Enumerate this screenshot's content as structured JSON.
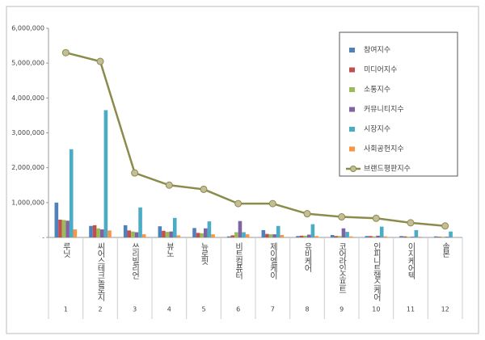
{
  "chart_data": {
    "type": "bar",
    "categories": [
      "루닛",
      "씨어스테크놀로지",
      "쓰리빌리언",
      "뷰노",
      "뉴로핏",
      "비트컴퓨터",
      "제이엘케이",
      "유비케어",
      "코어라인소프트",
      "인피니트헬스케어",
      "이지케어텍",
      "솔본"
    ],
    "ranks": [
      1,
      2,
      3,
      4,
      5,
      6,
      7,
      8,
      9,
      10,
      11,
      12
    ],
    "series": [
      {
        "name": "참여지수",
        "color": "#4f81bd",
        "values": [
          1000000,
          330000,
          350000,
          320000,
          270000,
          30000,
          210000,
          40000,
          70000,
          40000,
          40000,
          30000
        ]
      },
      {
        "name": "미디어지수",
        "color": "#c0504d",
        "values": [
          510000,
          350000,
          200000,
          190000,
          130000,
          60000,
          100000,
          50000,
          40000,
          40000,
          30000,
          20000
        ]
      },
      {
        "name": "소통지수",
        "color": "#9bbb59",
        "values": [
          500000,
          260000,
          170000,
          160000,
          120000,
          150000,
          90000,
          50000,
          40000,
          30000,
          20000,
          20000
        ]
      },
      {
        "name": "커뮤니티지수",
        "color": "#8064a2",
        "values": [
          480000,
          230000,
          150000,
          170000,
          260000,
          470000,
          90000,
          80000,
          260000,
          50000,
          20000,
          20000
        ]
      },
      {
        "name": "시장지수",
        "color": "#4bacc6",
        "values": [
          2530000,
          3650000,
          860000,
          560000,
          460000,
          150000,
          330000,
          380000,
          160000,
          310000,
          210000,
          170000
        ]
      },
      {
        "name": "사회공헌지수",
        "color": "#f79646",
        "values": [
          230000,
          200000,
          90000,
          60000,
          90000,
          90000,
          70000,
          40000,
          30000,
          30000,
          20000,
          10000
        ]
      },
      {
        "name": "브랜드평판지수",
        "color": "#8b8b4b",
        "type": "line",
        "values": [
          5300000,
          5050000,
          1850000,
          1500000,
          1380000,
          970000,
          970000,
          680000,
          590000,
          550000,
          420000,
          330000
        ]
      }
    ],
    "ylim": [
      0,
      6000000
    ],
    "yticks": [
      {
        "value": 0,
        "label": "-"
      },
      {
        "value": 1000000,
        "label": "1,000,000"
      },
      {
        "value": 2000000,
        "label": "2,000,000"
      },
      {
        "value": 3000000,
        "label": "3,000,000"
      },
      {
        "value": 4000000,
        "label": "4,000,000"
      },
      {
        "value": 5000000,
        "label": "5,000,000"
      },
      {
        "value": 6000000,
        "label": "6,000,000"
      }
    ],
    "grid": false
  }
}
